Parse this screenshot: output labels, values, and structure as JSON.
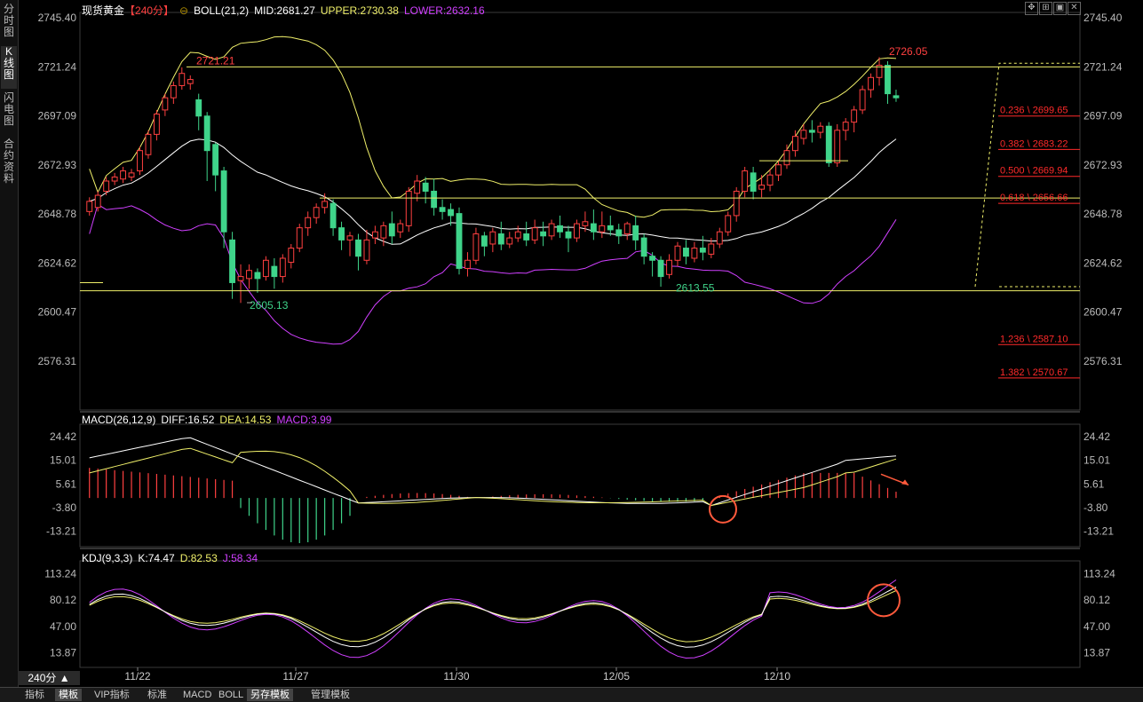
{
  "sidebar": {
    "tabs": [
      "分时图",
      "K线图",
      "闪电图",
      "合约资料"
    ],
    "active": 1
  },
  "main_header": {
    "title": "现货黄金",
    "period": "【240分】",
    "indicator": "BOLL(21,2)",
    "mid": "MID:2681.27",
    "upper": "UPPER:2730.38",
    "lower": "LOWER:2632.16"
  },
  "macd_header": {
    "name": "MACD(26,12,9)",
    "diff": "DIFF:16.52",
    "dea": "DEA:14.53",
    "macd": "MACD:3.99"
  },
  "kdj_header": {
    "name": "KDJ(9,3,3)",
    "k": "K:74.47",
    "d": "D:82.53",
    "j": "J:58.34"
  },
  "main_axis": {
    "left": [
      "2745.40",
      "2721.24",
      "2697.09",
      "2672.93",
      "2648.78",
      "2624.62",
      "2600.47",
      "2576.31"
    ]
  },
  "macd_axis": {
    "labels": [
      "24.42",
      "15.01",
      "5.61",
      "-3.80",
      "-13.21"
    ]
  },
  "kdj_axis": {
    "labels": [
      "113.24",
      "80.12",
      "47.00",
      "13.87"
    ]
  },
  "annotations": {
    "high1": "2721.21",
    "high2": "2726.05",
    "low1": "2605.13",
    "low2": "2613.55"
  },
  "fib_levels": [
    "0.236 \\ 2699.65",
    "0.382 \\ 2683.22",
    "0.500 \\ 2669.94",
    "0.618 \\ 2656.66",
    "1.236 \\ 2587.10",
    "1.382 \\ 2570.67"
  ],
  "dates": [
    "11/22",
    "11/27",
    "11/30",
    "12/05",
    "12/10"
  ],
  "period_button": "240分 ▲",
  "bottom_tabs": [
    "指标",
    "模板",
    "VIP指标",
    "标准",
    "MACD",
    "BOLL",
    "另存模板",
    "管理模板"
  ],
  "colors": {
    "up": "#ff4040",
    "down": "#3fd48a",
    "boll_mid": "#ffffff",
    "boll_upper": "#f0f06a",
    "boll_lower": "#d040ff",
    "fib": "#ff2a2a"
  },
  "chart_data": {
    "type": "candlestick",
    "candles": [
      [
        2650,
        2655,
        2648,
        2657
      ],
      [
        2652,
        2658,
        2650,
        2660
      ],
      [
        2660,
        2665,
        2658,
        2667
      ],
      [
        2665,
        2667,
        2663,
        2669
      ],
      [
        2666,
        2670,
        2664,
        2672
      ],
      [
        2667,
        2669,
        2665,
        2671
      ],
      [
        2670,
        2680,
        2668,
        2682
      ],
      [
        2678,
        2688,
        2676,
        2690
      ],
      [
        2688,
        2698,
        2685,
        2700
      ],
      [
        2700,
        2706,
        2697,
        2708
      ],
      [
        2706,
        2712,
        2703,
        2714
      ],
      [
        2712,
        2718,
        2710,
        2721
      ],
      [
        2713,
        2715,
        2710,
        2717
      ],
      [
        2705,
        2697,
        2690,
        2708
      ],
      [
        2697,
        2680,
        2665,
        2699
      ],
      [
        2683,
        2668,
        2660,
        2684
      ],
      [
        2670,
        2640,
        2632,
        2672
      ],
      [
        2636,
        2615,
        2607,
        2640
      ],
      [
        2616,
        2618,
        2605,
        2624
      ],
      [
        2617,
        2621,
        2612,
        2624
      ],
      [
        2620,
        2617,
        2610,
        2622
      ],
      [
        2618,
        2626,
        2616,
        2628
      ],
      [
        2623,
        2618,
        2612,
        2627
      ],
      [
        2618,
        2627,
        2615,
        2629
      ],
      [
        2625,
        2632,
        2622,
        2634
      ],
      [
        2632,
        2642,
        2630,
        2644
      ],
      [
        2642,
        2647,
        2638,
        2650
      ],
      [
        2647,
        2652,
        2644,
        2654
      ],
      [
        2652,
        2655,
        2649,
        2659
      ],
      [
        2654,
        2642,
        2638,
        2656
      ],
      [
        2642,
        2636,
        2631,
        2645
      ],
      [
        2636,
        2638,
        2628,
        2640
      ],
      [
        2636,
        2628,
        2621,
        2639
      ],
      [
        2626,
        2636,
        2624,
        2641
      ],
      [
        2637,
        2640,
        2634,
        2643
      ],
      [
        2637,
        2643,
        2633,
        2645
      ],
      [
        2644,
        2638,
        2634,
        2650
      ],
      [
        2640,
        2644,
        2637,
        2646
      ],
      [
        2643,
        2660,
        2640,
        2662
      ],
      [
        2659,
        2665,
        2655,
        2668
      ],
      [
        2664,
        2660,
        2654,
        2667
      ],
      [
        2660,
        2652,
        2648,
        2666
      ],
      [
        2652,
        2650,
        2646,
        2656
      ],
      [
        2651,
        2648,
        2643,
        2654
      ],
      [
        2649,
        2622,
        2619,
        2652
      ],
      [
        2622,
        2626,
        2618,
        2630
      ],
      [
        2626,
        2639,
        2624,
        2642
      ],
      [
        2638,
        2633,
        2628,
        2640
      ],
      [
        2634,
        2640,
        2630,
        2642
      ],
      [
        2639,
        2634,
        2631,
        2645
      ],
      [
        2634,
        2637,
        2632,
        2640
      ],
      [
        2637,
        2640,
        2635,
        2643
      ],
      [
        2639,
        2636,
        2633,
        2645
      ],
      [
        2636,
        2642,
        2634,
        2646
      ],
      [
        2640,
        2638,
        2633,
        2645
      ],
      [
        2638,
        2644,
        2636,
        2646
      ],
      [
        2643,
        2640,
        2637,
        2648
      ],
      [
        2640,
        2637,
        2630,
        2643
      ],
      [
        2637,
        2644,
        2635,
        2646
      ],
      [
        2643,
        2645,
        2640,
        2650
      ],
      [
        2644,
        2640,
        2636,
        2651
      ],
      [
        2640,
        2643,
        2637,
        2650
      ],
      [
        2643,
        2641,
        2638,
        2648
      ],
      [
        2641,
        2638,
        2634,
        2644
      ],
      [
        2639,
        2644,
        2636,
        2645
      ],
      [
        2643,
        2636,
        2631,
        2648
      ],
      [
        2637,
        2628,
        2624,
        2639
      ],
      [
        2628,
        2626,
        2618,
        2630
      ],
      [
        2626,
        2618,
        2613,
        2628
      ],
      [
        2619,
        2626,
        2617,
        2629
      ],
      [
        2626,
        2633,
        2623,
        2635
      ],
      [
        2632,
        2628,
        2624,
        2636
      ],
      [
        2627,
        2632,
        2625,
        2635
      ],
      [
        2632,
        2630,
        2626,
        2638
      ],
      [
        2629,
        2634,
        2627,
        2637
      ],
      [
        2634,
        2640,
        2632,
        2642
      ],
      [
        2640,
        2648,
        2638,
        2650
      ],
      [
        2648,
        2660,
        2645,
        2662
      ],
      [
        2660,
        2670,
        2657,
        2672
      ],
      [
        2669,
        2660,
        2656,
        2672
      ],
      [
        2661,
        2663,
        2657,
        2668
      ],
      [
        2663,
        2668,
        2660,
        2671
      ],
      [
        2668,
        2673,
        2665,
        2675
      ],
      [
        2673,
        2680,
        2671,
        2683
      ],
      [
        2680,
        2687,
        2677,
        2690
      ],
      [
        2686,
        2690,
        2683,
        2693
      ],
      [
        2690,
        2689,
        2684,
        2695
      ],
      [
        2689,
        2692,
        2686,
        2694
      ],
      [
        2692,
        2674,
        2672,
        2694
      ],
      [
        2674,
        2690,
        2672,
        2693
      ],
      [
        2690,
        2694,
        2685,
        2696
      ],
      [
        2694,
        2700,
        2689,
        2702
      ],
      [
        2700,
        2710,
        2698,
        2712
      ],
      [
        2710,
        2716,
        2706,
        2718
      ],
      [
        2716,
        2722,
        2712,
        2726
      ],
      [
        2722,
        2708,
        2703,
        2724
      ],
      [
        2707,
        2706,
        2704,
        2710
      ]
    ],
    "boll": {
      "mid": "2681.27",
      "upper": "2730.38",
      "lower": "2632.16"
    },
    "y_range": [
      2560,
      2755
    ],
    "macd": {
      "diff": 16.52,
      "dea": 14.53,
      "macd": 3.99,
      "ylim": [
        -18,
        28
      ]
    },
    "kdj": {
      "k": 74.47,
      "d": 82.53,
      "j": 58.34,
      "ylim": [
        0,
        125
      ]
    }
  }
}
